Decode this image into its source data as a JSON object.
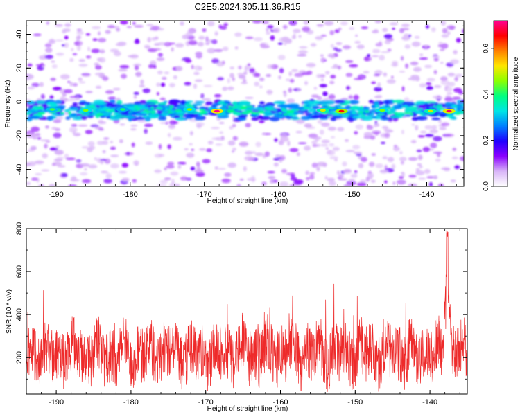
{
  "title": "C2E5.2024.305.11.36.R15",
  "chart_data": [
    {
      "type": "heatmap",
      "xlabel": "Height of straight line (km)",
      "ylabel": "Frequency (Hz)",
      "xlim": [
        -194,
        -135
      ],
      "ylim": [
        -50,
        48
      ],
      "xticks": [
        "-190",
        "-180",
        "-170",
        "-160",
        "-150",
        "-140"
      ],
      "xtick_values": [
        -190,
        -180,
        -170,
        -160,
        -150,
        -140
      ],
      "yticks": [
        "-40",
        "-20",
        "0",
        "20",
        "40"
      ],
      "ytick_values": [
        -40,
        -20,
        0,
        20,
        40
      ],
      "band_center_hz": -5,
      "band_halfwidth_hz": 4,
      "hotspots": [
        {
          "x": -168.3,
          "y": -5.5,
          "value": 0.72
        },
        {
          "x": -151.5,
          "y": -5.5,
          "value": 0.65
        },
        {
          "x": -137.0,
          "y": -5.5,
          "value": 0.7
        },
        {
          "x": -139.5,
          "y": -5.5,
          "value": 0.5
        },
        {
          "x": -190.5,
          "y": -4.5,
          "value": 0.42
        },
        {
          "x": -186.0,
          "y": -5.0,
          "value": 0.45
        },
        {
          "x": -181.0,
          "y": -4.5,
          "value": 0.4
        },
        {
          "x": -172.0,
          "y": -4.5,
          "value": 0.45
        },
        {
          "x": -154.0,
          "y": -5.0,
          "value": 0.5
        },
        {
          "x": -146.0,
          "y": -5.0,
          "value": 0.45
        }
      ],
      "colorbar": {
        "label": "Normalized spectral amplitude",
        "range": [
          0,
          0.72
        ],
        "ticks": [
          "0.0",
          "0.2",
          "0.4",
          "0.6"
        ],
        "tick_values": [
          0,
          0.2,
          0.4,
          0.6
        ],
        "colors": [
          "#ffffff",
          "#d8b4f8",
          "#8a00ff",
          "#1e00ff",
          "#0080ff",
          "#00e5e5",
          "#00ff80",
          "#8cff00",
          "#ffe600",
          "#ff8000",
          "#ff0000",
          "#ff0090"
        ]
      }
    },
    {
      "type": "line",
      "xlabel": "Height of straight line (km)",
      "ylabel": "SNR (10 * v/v)",
      "xlim": [
        -194,
        -135
      ],
      "ylim": [
        30,
        800
      ],
      "xticks": [
        "-190",
        "-180",
        "-170",
        "-160",
        "-150",
        "-140"
      ],
      "xtick_values": [
        -190,
        -180,
        -170,
        -160,
        -150,
        -140
      ],
      "yticks": [
        "200",
        "400",
        "600",
        "800"
      ],
      "ytick_values": [
        200,
        400,
        600,
        800
      ],
      "color": "#ee2a2a",
      "series_summary": {
        "n_points": 1800,
        "baseline": 220,
        "peak": {
          "x": -137.7,
          "y": 800
        }
      }
    }
  ]
}
